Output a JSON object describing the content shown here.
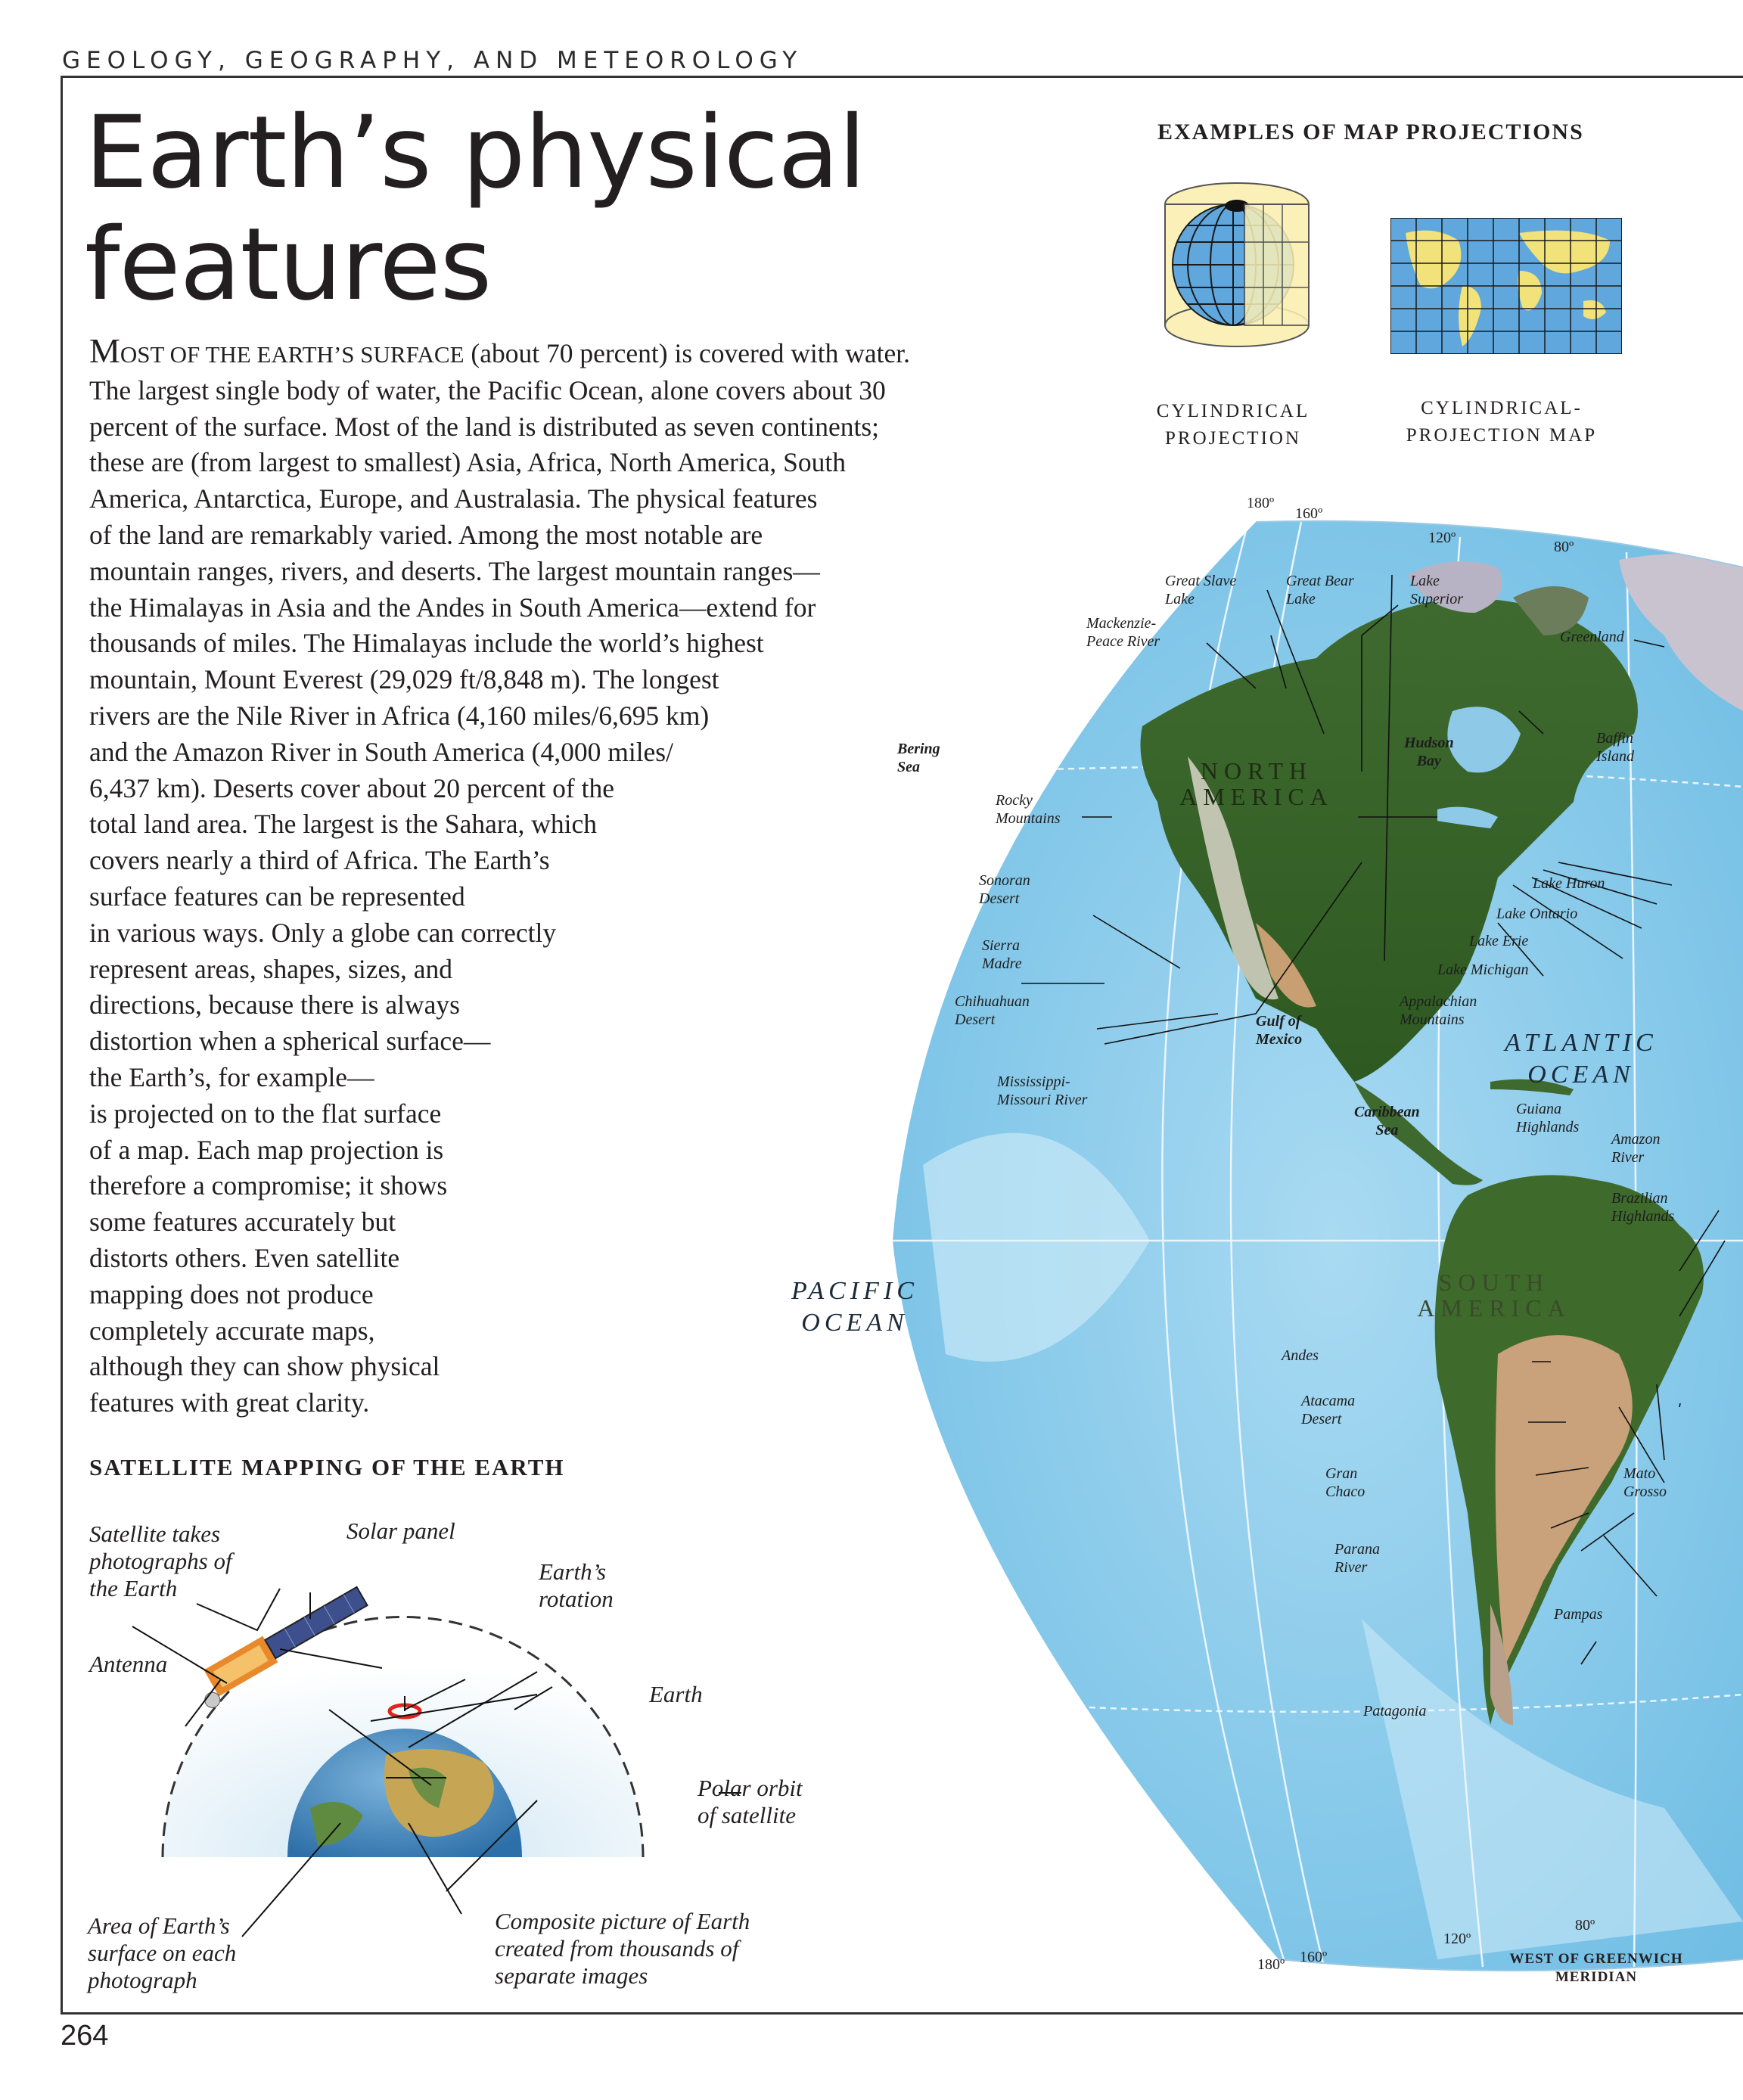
{
  "header": {
    "section": "GEOLOGY, GEOGRAPHY, AND METEOROLOGY"
  },
  "title": {
    "line1": "Earth’s physical",
    "line2": "features"
  },
  "body": {
    "lead_dropcap": "M",
    "lead_smallcaps": "OST OF THE EARTH’S SURFACE",
    "lines": [
      " (about 70 percent) is covered with water.",
      "The largest single body of water, the Pacific Ocean, alone covers about 30",
      "percent of the surface. Most of the land is distributed as seven continents;",
      "these are (from largest to smallest) Asia, Africa, North America, South",
      "America, Antarctica, Europe, and Australasia. The physical features",
      "of the land are remarkably varied. Among the most notable are",
      "mountain ranges, rivers, and deserts. The largest mountain ranges—",
      "the Himalayas in Asia and the Andes in South America—extend for",
      "thousands of miles. The Himalayas include the world’s highest",
      "mountain, Mount Everest (29,029 ft/8,848 m). The longest",
      "rivers are the Nile River in Africa (4,160 miles/6,695 km)",
      "and the Amazon River in South America (4,000 miles/",
      "6,437 km). Deserts cover about 20 percent of the",
      "total land area. The largest is the Sahara, which",
      "covers nearly a third of Africa. The Earth’s",
      "surface features can be represented",
      "in various ways. Only a globe can correctly",
      "represent areas, shapes, sizes, and",
      "directions, because there is always",
      "distortion when a spherical surface—",
      "the Earth’s, for example—",
      "is projected on to the flat surface",
      "of a map. Each map projection is",
      "therefore a compromise; it shows",
      "some features accurately but",
      "distorts others. Even satellite",
      "mapping does not produce",
      "completely accurate maps,",
      "although they can show physical",
      "features with great clarity."
    ]
  },
  "projections": {
    "heading": "EXAMPLES OF MAP PROJECTIONS",
    "cylindrical_caption_1": "CYLINDRICAL",
    "cylindrical_caption_2": "PROJECTION",
    "map_caption_1": "CYLINDRICAL-",
    "map_caption_2": "PROJECTION MAP"
  },
  "satellite": {
    "heading": "SATELLITE MAPPING OF THE EARTH",
    "label_satellite": "Satellite takes\nphotographs of\nthe Earth",
    "label_solar": "Solar panel",
    "label_rotation": "Earth’s\nrotation",
    "label_antenna": "Antenna",
    "label_earth": "Earth",
    "label_orbit": "Polar orbit\nof satellite",
    "label_area": "Area of Earth’s\nsurface on each\nphotograph",
    "label_composite": "Composite picture of Earth\ncreated from thousands of\nseparate images"
  },
  "map": {
    "degrees_top": [
      "180º",
      "160º",
      "120º",
      "80º"
    ],
    "degrees_bottom": [
      "180º",
      "160º",
      "120º",
      "80º"
    ],
    "meridian_note": "WEST OF GREENWICH\nMERIDIAN",
    "oceans": {
      "pacific": "PACIFIC\nOCEAN",
      "atlantic": "ATLANTIC\nOCEAN"
    },
    "continents": {
      "north_america": "NORTH\nAMERICA",
      "south_america": "SOUTH\nAMERICA"
    },
    "labels": {
      "great_slave": "Great Slave\nLake",
      "great_bear": "Great Bear\nLake",
      "lake_superior": "Lake\nSuperior",
      "mackenzie": "Mackenzie-\nPeace River",
      "greenland": "Greenland",
      "bering": "Bering\nSea",
      "hudson": "Hudson\nBay",
      "baffin": "Baffin\nIsland",
      "rocky": "Rocky\nMountains",
      "sonoran": "Sonoran\nDesert",
      "lake_huron": "Lake Huron",
      "lake_ontario": "Lake Ontario",
      "lake_erie": "Lake Erie",
      "lake_michigan": "Lake Michigan",
      "sierra": "Sierra\nMadre",
      "chihuahuan": "Chihuahuan\nDesert",
      "appalachian": "Appalachian\nMountains",
      "gulf": "Gulf of\nMexico",
      "mississippi": "Mississippi-\nMissouri River",
      "caribbean": "Caribbean\nSea",
      "guiana": "Guiana\nHighlands",
      "amazon": "Amazon\nRiver",
      "brazilian": "Brazilian\nHighlands",
      "andes": "Andes",
      "atacama": "Atacama\nDesert",
      "gran_chaco": "Gran\nChaco",
      "mato_grosso": "Mato\nGrosso",
      "parana": "Parana\nRiver",
      "pampas": "Pampas",
      "patagonia": "Patagonia"
    }
  },
  "footer": {
    "page_number": "264"
  }
}
